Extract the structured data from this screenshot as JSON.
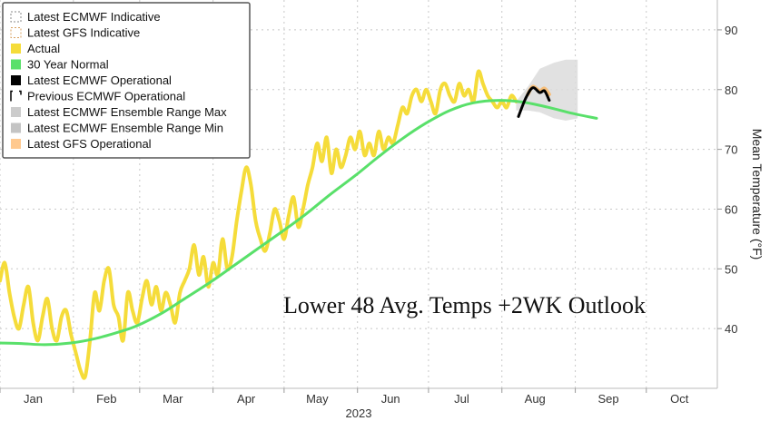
{
  "chart_data": {
    "type": "line",
    "annotation": "Lower 48 Avg. Temps +2WK Outlook",
    "ylabel": "Mean Temperature (°F)",
    "xlabel": "",
    "year_label": "2023",
    "ylim": [
      30,
      95
    ],
    "yticks": [
      40,
      50,
      60,
      70,
      80,
      90
    ],
    "xlim": [
      "2023-01-01",
      "2023-10-31"
    ],
    "month_ticks": [
      {
        "label": "Jan",
        "date": "2023-01-15"
      },
      {
        "label": "Feb",
        "date": "2023-02-15"
      },
      {
        "label": "Mar",
        "date": "2023-03-15"
      },
      {
        "label": "Apr",
        "date": "2023-04-15"
      },
      {
        "label": "May",
        "date": "2023-05-15"
      },
      {
        "label": "Jun",
        "date": "2023-06-15"
      },
      {
        "label": "Jul",
        "date": "2023-07-15"
      },
      {
        "label": "Aug",
        "date": "2023-08-15"
      },
      {
        "label": "Sep",
        "date": "2023-09-15"
      },
      {
        "label": "Oct",
        "date": "2023-10-15"
      }
    ],
    "grid": true,
    "legend_position": "top-left",
    "legend": [
      {
        "label": "Latest ECMWF Indicative",
        "swatch": "dashed-box"
      },
      {
        "label": "Latest GFS Indicative",
        "swatch": "dashed-box-orange"
      },
      {
        "label": "Actual",
        "swatch": "fill",
        "color": "#f5dc3a"
      },
      {
        "label": "30 Year Normal",
        "swatch": "fill",
        "color": "#59e06a"
      },
      {
        "label": "Latest ECMWF Operational",
        "swatch": "fill",
        "color": "#000000"
      },
      {
        "label": "Previous ECMWF Operational",
        "swatch": "bracket"
      },
      {
        "label": "Latest ECMWF Ensemble Range Max",
        "swatch": "fill",
        "color": "#cccccc"
      },
      {
        "label": "Latest ECMWF Ensemble Range Min",
        "swatch": "fill",
        "color": "#c4c4c4"
      },
      {
        "label": "Latest GFS Operational",
        "swatch": "fill",
        "color": "#ffc98f"
      }
    ],
    "colors": {
      "actual": "#f5dc3a",
      "normal": "#59e06a",
      "ecmwf_op": "#000000",
      "gfs_op": "#f7bf7a",
      "ensemble": "#dcdcdc",
      "grid": "#c8c8c8"
    },
    "series": [
      {
        "name": "Actual",
        "points": [
          [
            "2023-01-01",
            48
          ],
          [
            "2023-01-03",
            51
          ],
          [
            "2023-01-05",
            46
          ],
          [
            "2023-01-07",
            42
          ],
          [
            "2023-01-09",
            40
          ],
          [
            "2023-01-11",
            44
          ],
          [
            "2023-01-13",
            47
          ],
          [
            "2023-01-15",
            41
          ],
          [
            "2023-01-17",
            38
          ],
          [
            "2023-01-19",
            42
          ],
          [
            "2023-01-21",
            45
          ],
          [
            "2023-01-23",
            40
          ],
          [
            "2023-01-25",
            38
          ],
          [
            "2023-01-27",
            42
          ],
          [
            "2023-01-29",
            43
          ],
          [
            "2023-01-31",
            39
          ],
          [
            "2023-02-02",
            36
          ],
          [
            "2023-02-04",
            33
          ],
          [
            "2023-02-06",
            32
          ],
          [
            "2023-02-08",
            38
          ],
          [
            "2023-02-10",
            46
          ],
          [
            "2023-02-12",
            43
          ],
          [
            "2023-02-14",
            48
          ],
          [
            "2023-02-16",
            50
          ],
          [
            "2023-02-18",
            44
          ],
          [
            "2023-02-20",
            42
          ],
          [
            "2023-02-22",
            38
          ],
          [
            "2023-02-24",
            46
          ],
          [
            "2023-02-26",
            43
          ],
          [
            "2023-02-28",
            41
          ],
          [
            "2023-03-02",
            45
          ],
          [
            "2023-03-04",
            48
          ],
          [
            "2023-03-06",
            44
          ],
          [
            "2023-03-08",
            47
          ],
          [
            "2023-03-10",
            43
          ],
          [
            "2023-03-12",
            46
          ],
          [
            "2023-03-14",
            44
          ],
          [
            "2023-03-16",
            41
          ],
          [
            "2023-03-18",
            46
          ],
          [
            "2023-03-20",
            48
          ],
          [
            "2023-03-22",
            50
          ],
          [
            "2023-03-24",
            54
          ],
          [
            "2023-03-26",
            49
          ],
          [
            "2023-03-28",
            52
          ],
          [
            "2023-03-30",
            47
          ],
          [
            "2023-04-01",
            51
          ],
          [
            "2023-04-03",
            49
          ],
          [
            "2023-04-05",
            55
          ],
          [
            "2023-04-07",
            50
          ],
          [
            "2023-04-09",
            52
          ],
          [
            "2023-04-11",
            58
          ],
          [
            "2023-04-13",
            63
          ],
          [
            "2023-04-15",
            67
          ],
          [
            "2023-04-17",
            64
          ],
          [
            "2023-04-19",
            58
          ],
          [
            "2023-04-21",
            55
          ],
          [
            "2023-04-23",
            53
          ],
          [
            "2023-04-25",
            56
          ],
          [
            "2023-04-27",
            60
          ],
          [
            "2023-04-29",
            58
          ],
          [
            "2023-05-01",
            55
          ],
          [
            "2023-05-03",
            59
          ],
          [
            "2023-05-05",
            62
          ],
          [
            "2023-05-07",
            57
          ],
          [
            "2023-05-09",
            60
          ],
          [
            "2023-05-11",
            64
          ],
          [
            "2023-05-13",
            67
          ],
          [
            "2023-05-15",
            71
          ],
          [
            "2023-05-17",
            68
          ],
          [
            "2023-05-19",
            72
          ],
          [
            "2023-05-21",
            66
          ],
          [
            "2023-05-23",
            70
          ],
          [
            "2023-05-25",
            67
          ],
          [
            "2023-05-27",
            69
          ],
          [
            "2023-05-29",
            72
          ],
          [
            "2023-05-31",
            70
          ],
          [
            "2023-06-02",
            73
          ],
          [
            "2023-06-04",
            69
          ],
          [
            "2023-06-06",
            71
          ],
          [
            "2023-06-08",
            69
          ],
          [
            "2023-06-10",
            73
          ],
          [
            "2023-06-12",
            70
          ],
          [
            "2023-06-14",
            72
          ],
          [
            "2023-06-16",
            71
          ],
          [
            "2023-06-18",
            74
          ],
          [
            "2023-06-20",
            77
          ],
          [
            "2023-06-22",
            76
          ],
          [
            "2023-06-24",
            79
          ],
          [
            "2023-06-26",
            80
          ],
          [
            "2023-06-28",
            78
          ],
          [
            "2023-06-30",
            80
          ],
          [
            "2023-07-02",
            78
          ],
          [
            "2023-07-04",
            76
          ],
          [
            "2023-07-06",
            80
          ],
          [
            "2023-07-08",
            81
          ],
          [
            "2023-07-10",
            79
          ],
          [
            "2023-07-12",
            78
          ],
          [
            "2023-07-14",
            81
          ],
          [
            "2023-07-16",
            79
          ],
          [
            "2023-07-18",
            80
          ],
          [
            "2023-07-20",
            78
          ],
          [
            "2023-07-22",
            83
          ],
          [
            "2023-07-24",
            81
          ],
          [
            "2023-07-26",
            79
          ],
          [
            "2023-07-28",
            78
          ],
          [
            "2023-07-30",
            77
          ],
          [
            "2023-08-01",
            78
          ],
          [
            "2023-08-03",
            77
          ],
          [
            "2023-08-05",
            79
          ],
          [
            "2023-08-07",
            78
          ]
        ]
      },
      {
        "name": "30 Year Normal",
        "points": [
          [
            "2023-01-01",
            37.6
          ],
          [
            "2023-01-10",
            37.5
          ],
          [
            "2023-01-20",
            37.3
          ],
          [
            "2023-01-31",
            37.6
          ],
          [
            "2023-02-10",
            38.3
          ],
          [
            "2023-02-20",
            39.4
          ],
          [
            "2023-02-28",
            40.5
          ],
          [
            "2023-03-10",
            42.5
          ],
          [
            "2023-03-20",
            45
          ],
          [
            "2023-03-31",
            47.8
          ],
          [
            "2023-04-10",
            50.6
          ],
          [
            "2023-04-20",
            53.4
          ],
          [
            "2023-04-30",
            56.2
          ],
          [
            "2023-05-10",
            59.1
          ],
          [
            "2023-05-20",
            62.3
          ],
          [
            "2023-05-31",
            65.6
          ],
          [
            "2023-06-10",
            68.8
          ],
          [
            "2023-06-20",
            71.8
          ],
          [
            "2023-06-30",
            74.4
          ],
          [
            "2023-07-10",
            76.5
          ],
          [
            "2023-07-20",
            77.8
          ],
          [
            "2023-07-31",
            78.2
          ],
          [
            "2023-08-10",
            77.9
          ],
          [
            "2023-08-20",
            77.1
          ],
          [
            "2023-08-31",
            76
          ],
          [
            "2023-09-10",
            75.2
          ]
        ]
      },
      {
        "name": "Latest ECMWF Operational",
        "points": [
          [
            "2023-08-08",
            75.5
          ],
          [
            "2023-08-11",
            78.5
          ],
          [
            "2023-08-14",
            80.3
          ],
          [
            "2023-08-17",
            79.5
          ],
          [
            "2023-08-19",
            79.8
          ],
          [
            "2023-08-21",
            78.2
          ]
        ]
      },
      {
        "name": "Latest GFS Operational",
        "points": [
          [
            "2023-08-12",
            79.2
          ],
          [
            "2023-08-14",
            80.5
          ],
          [
            "2023-08-17",
            79.8
          ],
          [
            "2023-08-19",
            80.2
          ],
          [
            "2023-08-21",
            79.2
          ]
        ]
      },
      {
        "name": "Latest ECMWF Ensemble Range",
        "upper": [
          [
            "2023-08-07",
            78
          ],
          [
            "2023-08-12",
            80.5
          ],
          [
            "2023-08-17",
            83.5
          ],
          [
            "2023-08-23",
            84.5
          ],
          [
            "2023-08-28",
            85
          ],
          [
            "2023-09-02",
            85
          ]
        ],
        "lower": [
          [
            "2023-08-07",
            76.5
          ],
          [
            "2023-08-12",
            76.5
          ],
          [
            "2023-08-17",
            76.2
          ],
          [
            "2023-08-23",
            75.2
          ],
          [
            "2023-08-28",
            74.8
          ],
          [
            "2023-09-02",
            75.2
          ]
        ]
      }
    ]
  }
}
